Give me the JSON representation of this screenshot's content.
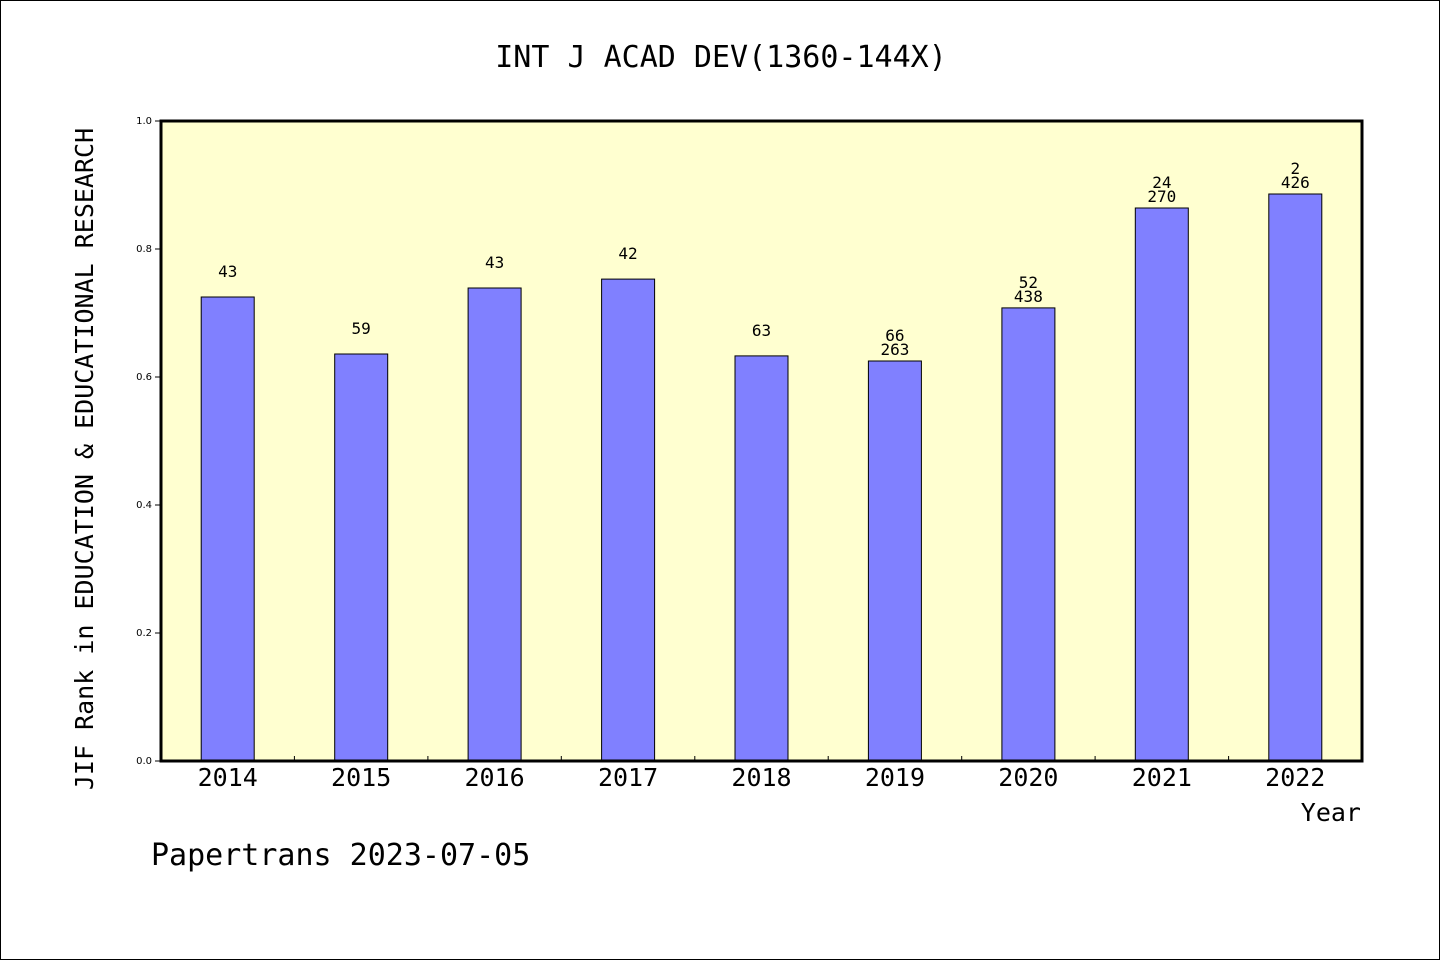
{
  "chart_data": {
    "type": "bar",
    "title": "INT J ACAD DEV(1360-144X)",
    "xlabel": "Year",
    "ylabel": "JIF Rank in EDUCATION & EDUCATIONAL RESEARCH",
    "categories": [
      "2014",
      "2015",
      "2016",
      "2017",
      "2018",
      "2019",
      "2020",
      "2021",
      "2022"
    ],
    "values": [
      0.725,
      0.636,
      0.739,
      0.753,
      0.633,
      0.625,
      0.708,
      0.864,
      0.886
    ],
    "rank_labels": [
      "43",
      "59",
      "43",
      "42",
      "63",
      "66",
      "52",
      "24",
      "2"
    ],
    "total_labels": [
      "",
      "",
      "",
      "",
      "",
      "263",
      "438",
      "270",
      "426"
    ],
    "ylim": [
      0,
      1.0
    ],
    "yticks": [
      "0.0",
      "0.2",
      "0.4",
      "0.6",
      "0.8",
      "1.0"
    ],
    "ytick_values": [
      0,
      0.2,
      0.4,
      0.6,
      0.8,
      1.0
    ],
    "grid": false,
    "colors": {
      "bar": "#8080ff",
      "plot_background": "#ffffd0",
      "axis": "#000000"
    }
  },
  "footer": "Papertrans 2023-07-05"
}
